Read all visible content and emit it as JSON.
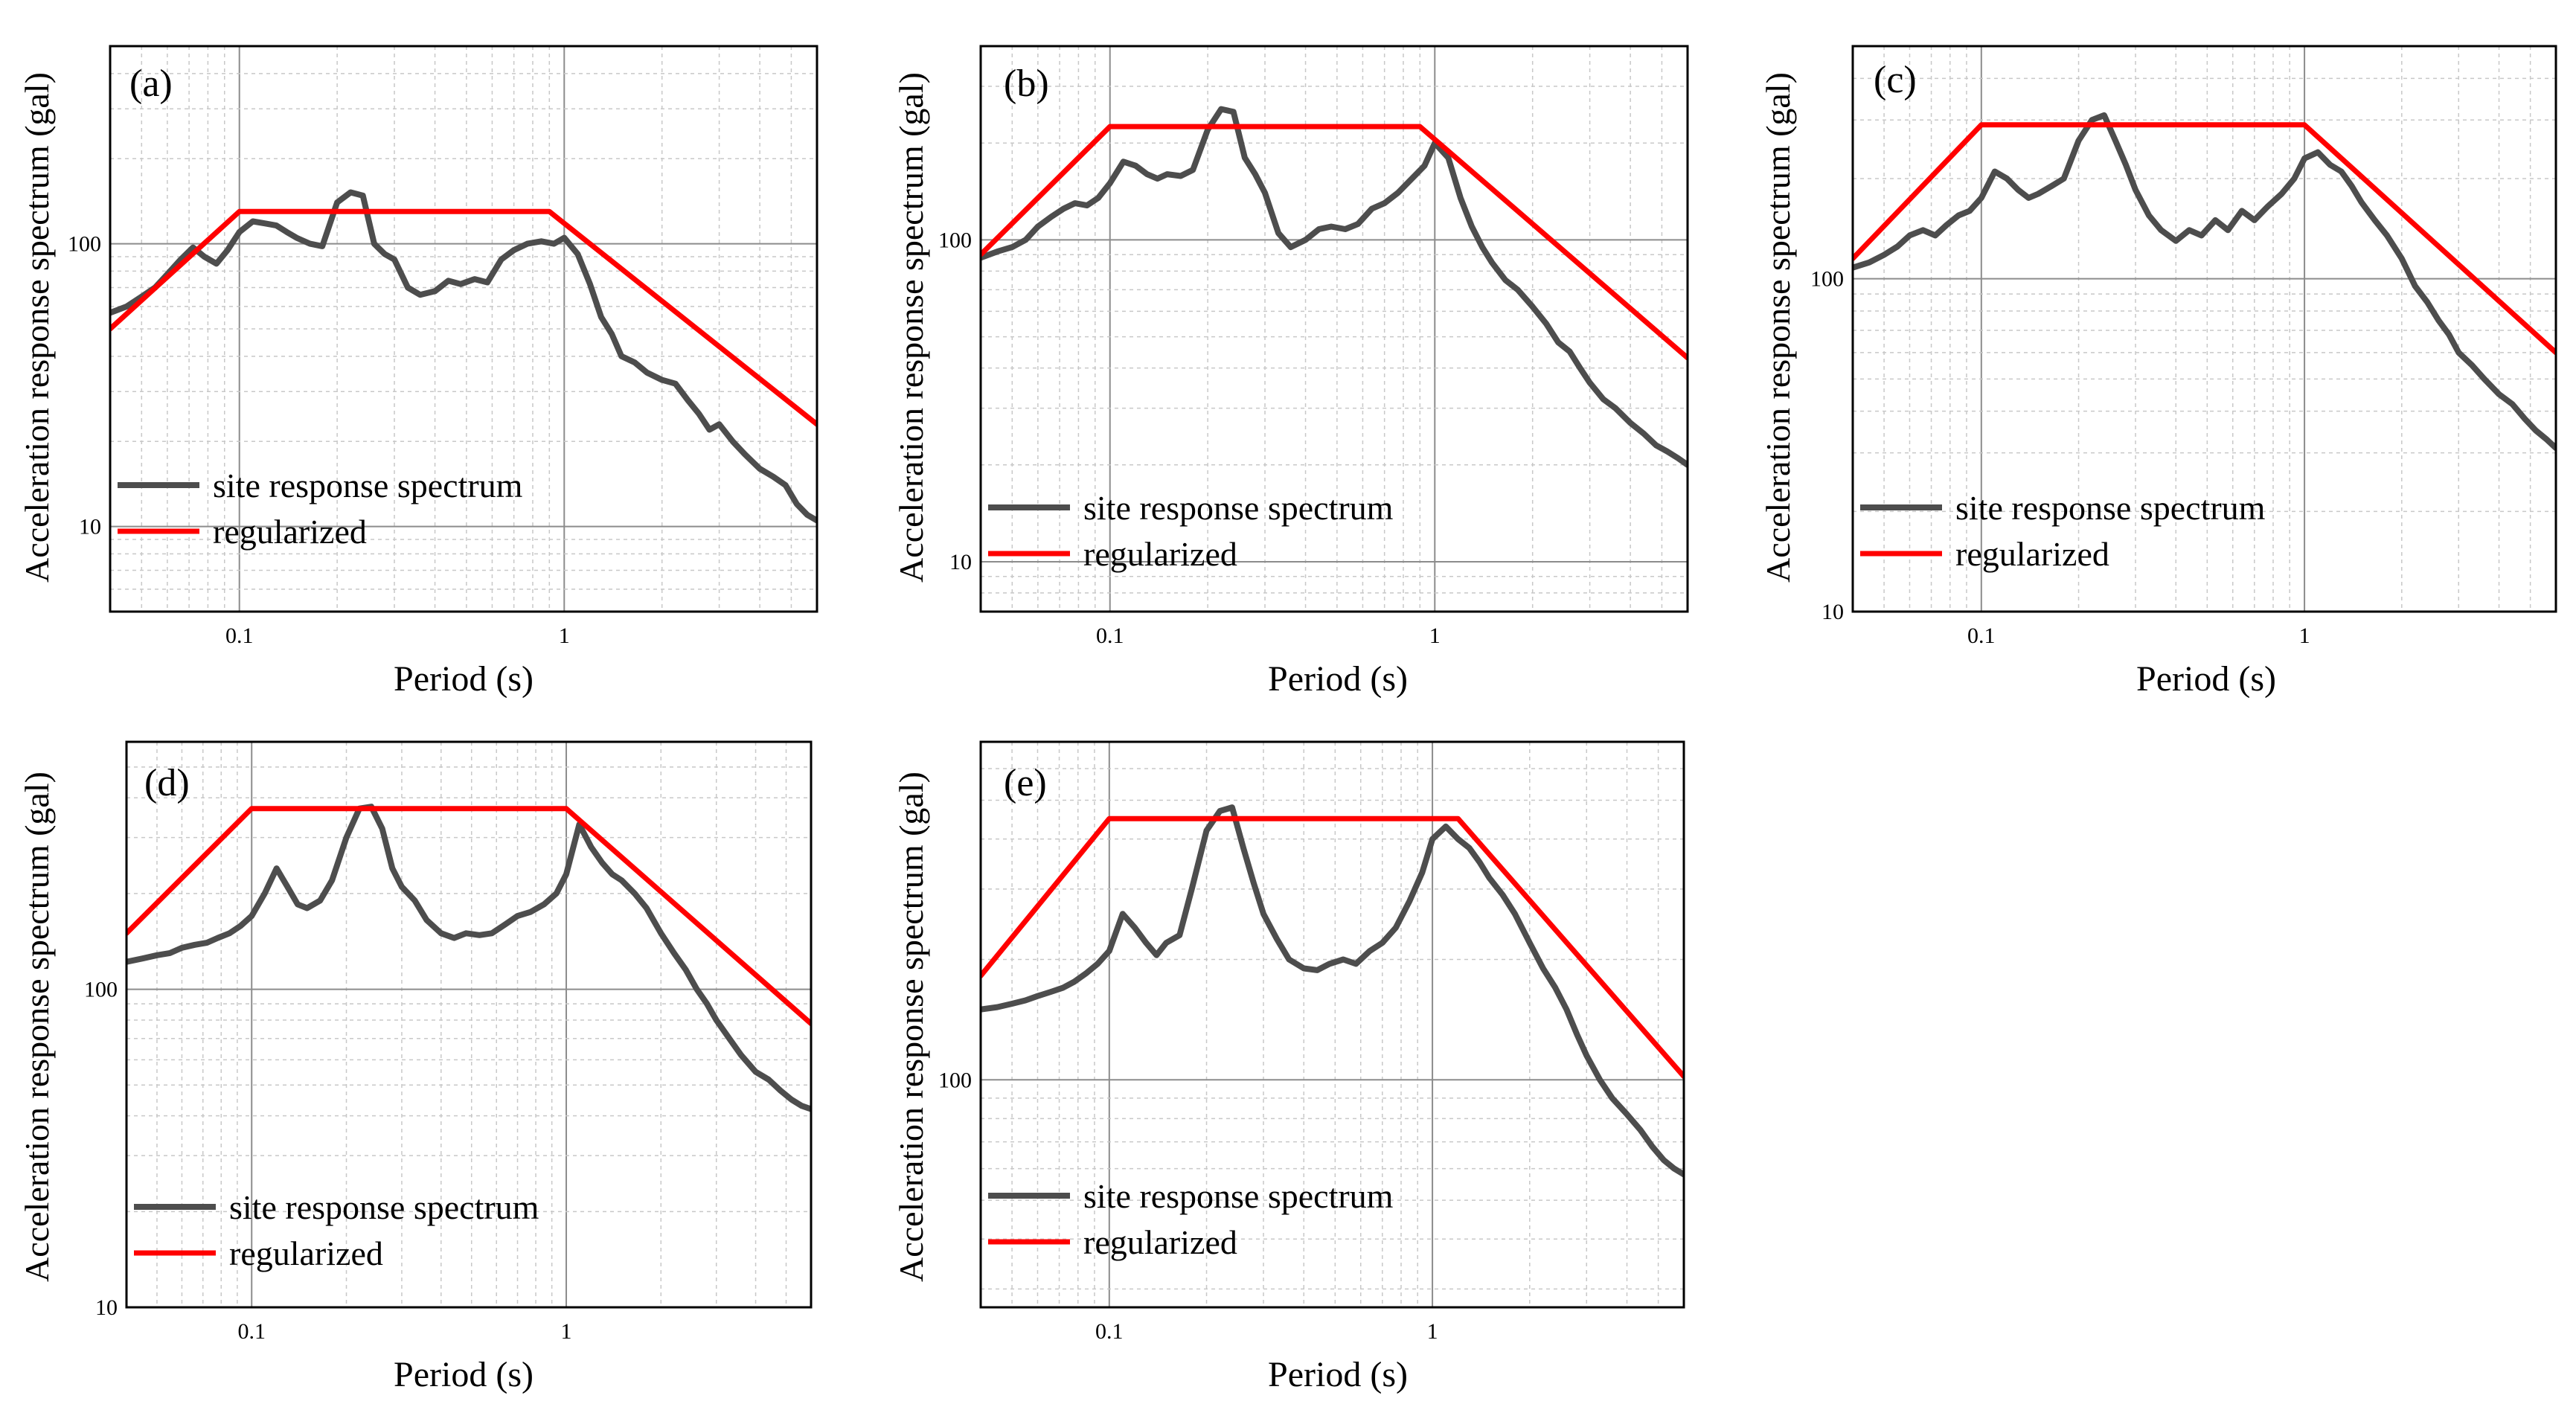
{
  "figure": {
    "colors": {
      "site": "#4d4d4d",
      "regularized": "#ff0000",
      "grid_major": "#8c8c8c",
      "grid_minor": "#c8c8c8",
      "frame": "#000000"
    },
    "x_label": "Period (s)",
    "y_label": "Acceleration response spectrum (gal)"
  },
  "chart_data": [
    {
      "id": "a",
      "type": "line",
      "panel_label": "(a)",
      "xlabel": "Period (s)",
      "ylabel": "Acceleration response spectrum (gal)",
      "xscale": "log",
      "yscale": "log",
      "xlim": [
        0.04,
        6
      ],
      "ylim": [
        5,
        500
      ],
      "x_ticks": [
        {
          "value": 0.1,
          "label": "0.1"
        },
        {
          "value": 1,
          "label": "1"
        }
      ],
      "y_ticks": [
        {
          "value": 10,
          "label": "10"
        },
        {
          "value": 100,
          "label": "100"
        }
      ],
      "grid": true,
      "legend_position": "lower-left",
      "series": [
        {
          "name": "site response spectrum",
          "color": "#4d4d4d",
          "x": [
            0.04,
            0.045,
            0.05,
            0.055,
            0.06,
            0.066,
            0.072,
            0.078,
            0.085,
            0.092,
            0.1,
            0.11,
            0.12,
            0.13,
            0.14,
            0.15,
            0.165,
            0.18,
            0.2,
            0.22,
            0.24,
            0.26,
            0.28,
            0.3,
            0.33,
            0.36,
            0.4,
            0.44,
            0.48,
            0.53,
            0.58,
            0.64,
            0.7,
            0.77,
            0.85,
            0.93,
            1.0,
            1.1,
            1.2,
            1.3,
            1.4,
            1.5,
            1.65,
            1.8,
            2.0,
            2.2,
            2.4,
            2.6,
            2.8,
            3.0,
            3.3,
            3.6,
            4.0,
            4.4,
            4.8,
            5.2,
            5.6,
            6.0
          ],
          "y": [
            57,
            60,
            65,
            70,
            78,
            88,
            97,
            90,
            85,
            95,
            110,
            120,
            118,
            116,
            110,
            105,
            100,
            98,
            140,
            152,
            148,
            100,
            92,
            88,
            70,
            66,
            68,
            74,
            72,
            75,
            73,
            88,
            95,
            100,
            102,
            100,
            105,
            92,
            72,
            55,
            48,
            40,
            38,
            35,
            33,
            32,
            28,
            25,
            22,
            23,
            20,
            18,
            16,
            15,
            14,
            12,
            11,
            10.5
          ]
        },
        {
          "name": "regularized",
          "color": "#ff0000",
          "x": [
            0.04,
            0.1,
            0.9,
            6.0
          ],
          "y": [
            50,
            130,
            130,
            23
          ]
        }
      ]
    },
    {
      "id": "b",
      "type": "line",
      "panel_label": "(b)",
      "xlabel": "Period (s)",
      "ylabel": "Acceleration response spectrum (gal)",
      "xscale": "log",
      "yscale": "log",
      "xlim": [
        0.04,
        6
      ],
      "ylim": [
        7,
        400
      ],
      "x_ticks": [
        {
          "value": 0.1,
          "label": "0.1"
        },
        {
          "value": 1,
          "label": "1"
        }
      ],
      "y_ticks": [
        {
          "value": 10,
          "label": "10"
        },
        {
          "value": 100,
          "label": "100"
        }
      ],
      "grid": true,
      "legend_position": "lower-left",
      "series": [
        {
          "name": "site response spectrum",
          "color": "#4d4d4d",
          "x": [
            0.04,
            0.045,
            0.05,
            0.055,
            0.06,
            0.066,
            0.072,
            0.078,
            0.085,
            0.092,
            0.1,
            0.11,
            0.12,
            0.13,
            0.14,
            0.15,
            0.165,
            0.18,
            0.2,
            0.22,
            0.24,
            0.26,
            0.28,
            0.3,
            0.33,
            0.36,
            0.4,
            0.44,
            0.48,
            0.53,
            0.58,
            0.64,
            0.7,
            0.77,
            0.85,
            0.93,
            1.0,
            1.1,
            1.2,
            1.3,
            1.4,
            1.5,
            1.65,
            1.8,
            2.0,
            2.2,
            2.4,
            2.6,
            2.8,
            3.0,
            3.3,
            3.6,
            4.0,
            4.4,
            4.8,
            5.2,
            5.6,
            6.0
          ],
          "y": [
            88,
            92,
            95,
            100,
            110,
            118,
            125,
            130,
            128,
            135,
            150,
            175,
            170,
            160,
            155,
            160,
            158,
            165,
            220,
            255,
            250,
            180,
            160,
            140,
            105,
            95,
            100,
            108,
            110,
            108,
            112,
            125,
            130,
            140,
            155,
            170,
            200,
            180,
            135,
            110,
            95,
            85,
            75,
            70,
            62,
            55,
            48,
            45,
            40,
            36,
            32,
            30,
            27,
            25,
            23,
            22,
            21,
            20
          ]
        },
        {
          "name": "regularized",
          "color": "#ff0000",
          "x": [
            0.04,
            0.1,
            0.9,
            6.0
          ],
          "y": [
            90,
            225,
            225,
            43
          ]
        }
      ]
    },
    {
      "id": "c",
      "type": "line",
      "panel_label": "(c)",
      "xlabel": "Period (s)",
      "ylabel": "Acceleration response spectrum (gal)",
      "xscale": "log",
      "yscale": "log",
      "xlim": [
        0.04,
        6
      ],
      "ylim": [
        10,
        500
      ],
      "x_ticks": [
        {
          "value": 0.1,
          "label": "0.1"
        },
        {
          "value": 1,
          "label": "1"
        }
      ],
      "y_ticks": [
        {
          "value": 10,
          "label": "10"
        },
        {
          "value": 100,
          "label": "100"
        }
      ],
      "grid": true,
      "legend_position": "lower-left",
      "series": [
        {
          "name": "site response spectrum",
          "color": "#4d4d4d",
          "x": [
            0.04,
            0.045,
            0.05,
            0.055,
            0.06,
            0.066,
            0.072,
            0.078,
            0.085,
            0.092,
            0.1,
            0.11,
            0.12,
            0.13,
            0.14,
            0.15,
            0.165,
            0.18,
            0.2,
            0.22,
            0.24,
            0.26,
            0.28,
            0.3,
            0.33,
            0.36,
            0.4,
            0.44,
            0.48,
            0.53,
            0.58,
            0.64,
            0.7,
            0.77,
            0.85,
            0.93,
            1.0,
            1.1,
            1.2,
            1.3,
            1.4,
            1.5,
            1.65,
            1.8,
            2.0,
            2.2,
            2.4,
            2.6,
            2.8,
            3.0,
            3.3,
            3.6,
            4.0,
            4.4,
            4.8,
            5.2,
            5.6,
            6.0
          ],
          "y": [
            108,
            112,
            118,
            125,
            135,
            140,
            135,
            145,
            155,
            160,
            175,
            210,
            200,
            185,
            175,
            180,
            190,
            200,
            260,
            300,
            310,
            260,
            220,
            185,
            155,
            140,
            130,
            140,
            135,
            150,
            140,
            160,
            150,
            165,
            180,
            200,
            230,
            240,
            220,
            210,
            190,
            170,
            150,
            135,
            115,
            95,
            85,
            75,
            68,
            60,
            55,
            50,
            45,
            42,
            38,
            35,
            33,
            31
          ]
        },
        {
          "name": "regularized",
          "color": "#ff0000",
          "x": [
            0.04,
            0.1,
            1.0,
            6.0
          ],
          "y": [
            115,
            290,
            290,
            60
          ]
        }
      ]
    },
    {
      "id": "d",
      "type": "line",
      "panel_label": "(d)",
      "xlabel": "Period (s)",
      "ylabel": "Acceleration response spectrum (gal)",
      "xscale": "log",
      "yscale": "log",
      "xlim": [
        0.04,
        6
      ],
      "ylim": [
        10,
        600
      ],
      "x_ticks": [
        {
          "value": 0.1,
          "label": "0.1"
        },
        {
          "value": 1,
          "label": "1"
        }
      ],
      "y_ticks": [
        {
          "value": 10,
          "label": "10"
        },
        {
          "value": 100,
          "label": "100"
        }
      ],
      "grid": true,
      "legend_position": "lower-left",
      "series": [
        {
          "name": "site response spectrum",
          "color": "#4d4d4d",
          "x": [
            0.04,
            0.045,
            0.05,
            0.055,
            0.06,
            0.066,
            0.072,
            0.078,
            0.085,
            0.092,
            0.1,
            0.11,
            0.12,
            0.13,
            0.14,
            0.15,
            0.165,
            0.18,
            0.2,
            0.22,
            0.24,
            0.26,
            0.28,
            0.3,
            0.33,
            0.36,
            0.4,
            0.44,
            0.48,
            0.53,
            0.58,
            0.64,
            0.7,
            0.77,
            0.85,
            0.93,
            1.0,
            1.1,
            1.2,
            1.3,
            1.4,
            1.5,
            1.65,
            1.8,
            2.0,
            2.2,
            2.4,
            2.6,
            2.8,
            3.0,
            3.3,
            3.6,
            4.0,
            4.4,
            4.8,
            5.2,
            5.6,
            6.0
          ],
          "y": [
            122,
            125,
            128,
            130,
            135,
            138,
            140,
            145,
            150,
            158,
            170,
            200,
            240,
            210,
            185,
            180,
            190,
            220,
            300,
            370,
            375,
            320,
            240,
            210,
            190,
            165,
            150,
            145,
            150,
            148,
            150,
            160,
            170,
            175,
            185,
            200,
            230,
            330,
            280,
            250,
            230,
            220,
            200,
            180,
            150,
            130,
            115,
            100,
            90,
            80,
            70,
            62,
            55,
            52,
            48,
            45,
            43,
            42
          ]
        },
        {
          "name": "regularized",
          "color": "#ff0000",
          "x": [
            0.04,
            0.1,
            1.0,
            6.0
          ],
          "y": [
            150,
            370,
            370,
            78
          ]
        }
      ]
    },
    {
      "id": "e",
      "type": "line",
      "panel_label": "(e)",
      "xlabel": "Period (s)",
      "ylabel": "Acceleration response spectrum (gal)",
      "xscale": "log",
      "yscale": "log",
      "xlim": [
        0.04,
        6
      ],
      "ylim": [
        27,
        700
      ],
      "x_ticks": [
        {
          "value": 0.1,
          "label": "0.1"
        },
        {
          "value": 1,
          "label": "1"
        }
      ],
      "y_ticks": [
        {
          "value": 100,
          "label": "100"
        }
      ],
      "grid": true,
      "legend_position": "lower-left",
      "series": [
        {
          "name": "site response spectrum",
          "color": "#4d4d4d",
          "x": [
            0.04,
            0.045,
            0.05,
            0.055,
            0.06,
            0.066,
            0.072,
            0.078,
            0.085,
            0.092,
            0.1,
            0.11,
            0.12,
            0.13,
            0.14,
            0.15,
            0.165,
            0.18,
            0.2,
            0.22,
            0.24,
            0.26,
            0.28,
            0.3,
            0.33,
            0.36,
            0.4,
            0.44,
            0.48,
            0.53,
            0.58,
            0.64,
            0.7,
            0.77,
            0.85,
            0.93,
            1.0,
            1.1,
            1.2,
            1.3,
            1.4,
            1.5,
            1.65,
            1.8,
            2.0,
            2.2,
            2.4,
            2.6,
            2.8,
            3.0,
            3.3,
            3.6,
            4.0,
            4.4,
            4.8,
            5.2,
            5.6,
            6.0
          ],
          "y": [
            150,
            152,
            155,
            158,
            162,
            166,
            170,
            176,
            185,
            195,
            210,
            260,
            240,
            220,
            205,
            220,
            230,
            300,
            420,
            470,
            480,
            380,
            310,
            260,
            225,
            200,
            190,
            188,
            195,
            200,
            195,
            210,
            220,
            240,
            280,
            330,
            400,
            430,
            400,
            380,
            350,
            320,
            290,
            260,
            220,
            190,
            170,
            150,
            130,
            115,
            100,
            90,
            82,
            75,
            68,
            63,
            60,
            58
          ]
        },
        {
          "name": "regularized",
          "color": "#ff0000",
          "x": [
            0.04,
            0.1,
            1.2,
            6.0
          ],
          "y": [
            182,
            450,
            450,
            102
          ]
        }
      ]
    }
  ]
}
